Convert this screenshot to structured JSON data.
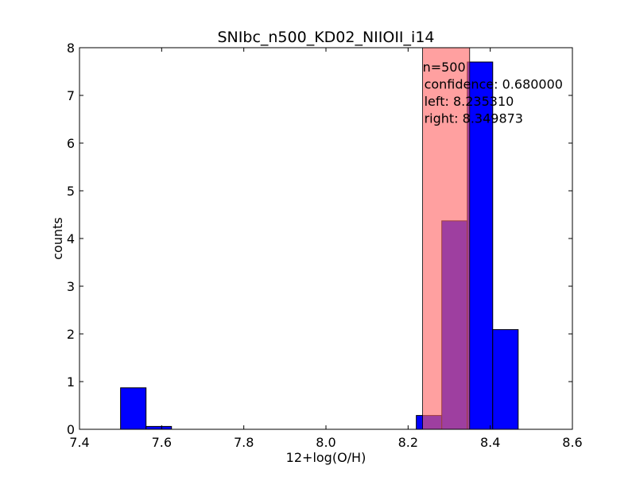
{
  "chart_data": {
    "type": "bar",
    "title": "SNIbc_n500_KD02_NIIOII_i14",
    "xlabel": "12+log(O/H)",
    "ylabel": "counts",
    "xlim": [
      7.4,
      8.6
    ],
    "ylim": [
      0,
      8
    ],
    "xticks": [
      "7.4",
      "7.6",
      "7.8",
      "8.0",
      "8.2",
      "8.4",
      "8.6"
    ],
    "yticks": [
      "0",
      "1",
      "2",
      "3",
      "4",
      "5",
      "6",
      "7",
      "8"
    ],
    "grid": false,
    "bars": [
      {
        "x0": 7.5,
        "x1": 7.562,
        "value": 0.87
      },
      {
        "x0": 7.562,
        "x1": 7.624,
        "value": 0.06
      },
      {
        "x0": 7.624,
        "x1": 7.686,
        "value": 0.0
      },
      {
        "x0": 7.686,
        "x1": 7.748,
        "value": 0.0
      },
      {
        "x0": 7.748,
        "x1": 7.81,
        "value": 0.0
      },
      {
        "x0": 7.81,
        "x1": 7.872,
        "value": 0.0
      },
      {
        "x0": 7.872,
        "x1": 7.934,
        "value": 0.0
      },
      {
        "x0": 7.934,
        "x1": 7.996,
        "value": 0.0
      },
      {
        "x0": 7.996,
        "x1": 8.058,
        "value": 0.0
      },
      {
        "x0": 8.058,
        "x1": 8.12,
        "value": 0.0
      },
      {
        "x0": 8.12,
        "x1": 8.182,
        "value": 0.0
      },
      {
        "x0": 8.22,
        "x1": 8.282,
        "value": 0.29
      },
      {
        "x0": 8.282,
        "x1": 8.344,
        "value": 4.37
      },
      {
        "x0": 8.344,
        "x1": 8.406,
        "value": 7.7
      },
      {
        "x0": 8.406,
        "x1": 8.468,
        "value": 2.09
      }
    ],
    "bar_color": "#0000ff",
    "confidence_band": {
      "left": 8.23531,
      "right": 8.349873,
      "color": "#ff6666"
    },
    "annotation": [
      "n=500",
      "confidence: 0.680000",
      "left: 8.235310",
      "right: 8.349873"
    ]
  }
}
